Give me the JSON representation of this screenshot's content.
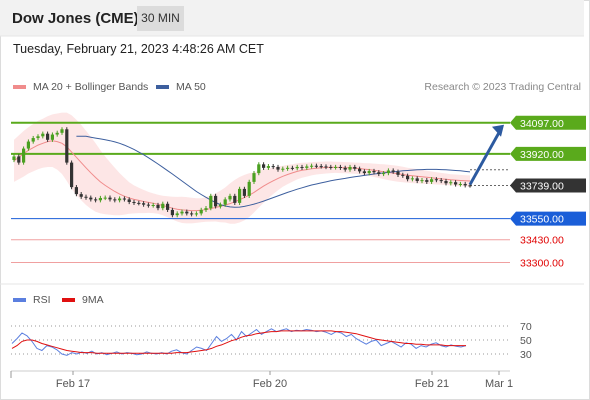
{
  "header": {
    "title": "Dow Jones (CME)",
    "timeframe": "30 MIN",
    "datetime": "Tuesday, February 21, 2023 4:48:26 AM CET",
    "research": "Research © 2023 Trading Central"
  },
  "legend": {
    "ma20": "MA 20 + Bollinger Bands",
    "ma50": "MA 50",
    "rsi": "RSI",
    "rsi_ma": "9MA"
  },
  "colors": {
    "ma20": "#f08c8c",
    "ma50": "#3d5f9e",
    "bull": "#4aa020",
    "bear": "#333333",
    "resistance": "#5aaa1c",
    "support": "#1a5ed8",
    "support_weak": "#f0a0a0",
    "support_label": "#e00000",
    "rsi": "#5b7fdf",
    "rsi_ma": "#e01010"
  },
  "chart_data": [
    {
      "type": "candlestick",
      "x_ticks": [
        "Feb 17",
        "Feb 20",
        "Feb 21",
        "Mar 1"
      ],
      "y_range": [
        33200,
        34250
      ],
      "levels": [
        {
          "label": "34097.00",
          "value": 34097,
          "kind": "resistance"
        },
        {
          "label": "33920.00",
          "value": 33920,
          "kind": "resistance"
        },
        {
          "label": "33739.00",
          "value": 33739,
          "kind": "current"
        },
        {
          "label": "33550.00",
          "value": 33550,
          "kind": "support"
        },
        {
          "label": "33430.00",
          "value": 33430,
          "kind": "support_weak"
        },
        {
          "label": "33300.00",
          "value": 33300,
          "kind": "support_weak"
        }
      ],
      "close": [
        33905,
        33870,
        33950,
        33990,
        34010,
        34020,
        34035,
        34000,
        34030,
        34040,
        34060,
        33870,
        33730,
        33690,
        33675,
        33670,
        33660,
        33655,
        33668,
        33670,
        33660,
        33655,
        33665,
        33660,
        33645,
        33640,
        33638,
        33630,
        33625,
        33628,
        33610,
        33635,
        33600,
        33570,
        33580,
        33590,
        33580,
        33575,
        33580,
        33600,
        33610,
        33680,
        33620,
        33630,
        33660,
        33680,
        33640,
        33720,
        33680,
        33760,
        33810,
        33860,
        33840,
        33850,
        33845,
        33830,
        33835,
        33840,
        33838,
        33845,
        33840,
        33848,
        33852,
        33850,
        33848,
        33845,
        33842,
        33845,
        33840,
        33830,
        33845,
        33835,
        33820,
        33810,
        33822,
        33815,
        33805,
        33810,
        33825,
        33818,
        33800,
        33795,
        33775,
        33780,
        33765,
        33770,
        33760,
        33775,
        33770,
        33765,
        33752,
        33758,
        33745,
        33748,
        33740,
        33739
      ],
      "ma20": [
        33880,
        33900,
        33920,
        33940,
        33955,
        33970,
        33980,
        33990,
        33995,
        33990,
        33980,
        33960,
        33930,
        33900,
        33870,
        33840,
        33812,
        33785,
        33760,
        33740,
        33722,
        33705,
        33690,
        33678,
        33668,
        33660,
        33654,
        33648,
        33643,
        33638,
        33632,
        33625,
        33618,
        33610,
        33604,
        33600,
        33598,
        33596,
        33596,
        33598,
        33602,
        33608,
        33614,
        33620,
        33628,
        33636,
        33646,
        33658,
        33670,
        33684,
        33700,
        33718,
        33736,
        33752,
        33766,
        33780,
        33792,
        33802,
        33811,
        33820,
        33826,
        33830,
        33835,
        33838,
        33840,
        33842,
        33843,
        33843,
        33842,
        33841,
        33840,
        33838,
        33836,
        33833,
        33830,
        33826,
        33822,
        33818,
        33814,
        33810,
        33806,
        33802,
        33798,
        33795,
        33792,
        33789,
        33786,
        33783,
        33780,
        33777,
        33775,
        33772,
        33770,
        33768,
        33766,
        33765
      ],
      "bollinger_width": [
        120,
        125,
        130,
        132,
        135,
        138,
        140,
        145,
        150,
        160,
        175,
        195,
        210,
        215,
        215,
        212,
        205,
        195,
        180,
        165,
        150,
        135,
        120,
        105,
        90,
        80,
        72,
        66,
        60,
        56,
        54,
        56,
        60,
        65,
        70,
        75,
        75,
        73,
        70,
        68,
        70,
        75,
        80,
        90,
        100,
        115,
        125,
        130,
        130,
        125,
        115,
        105,
        95,
        85,
        75,
        68,
        60,
        55,
        50,
        46,
        43,
        40,
        38,
        36,
        35,
        34,
        33,
        32,
        32,
        32,
        32,
        32,
        33,
        34,
        36,
        38,
        40,
        42,
        44,
        45,
        45,
        44,
        43,
        42,
        41,
        40,
        38,
        36,
        35,
        34,
        33,
        32,
        32,
        32,
        32,
        32
      ],
      "ma50": [
        34020,
        34020,
        34020,
        34015,
        34010,
        34005,
        34000,
        33995,
        33988,
        33980,
        33970,
        33958,
        33945,
        33930,
        33915,
        33898,
        33880,
        33862,
        33843,
        33824,
        33805,
        33785,
        33765,
        33745,
        33725,
        33705,
        33688,
        33672,
        33656,
        33642,
        33630,
        33622,
        33617,
        33615,
        33616,
        33620,
        33626,
        33633,
        33641,
        33650,
        33660,
        33670,
        33680,
        33690,
        33700,
        33709,
        33718,
        33726,
        33734,
        33742,
        33748,
        33754,
        33760,
        33766,
        33771,
        33776,
        33780,
        33785,
        33789,
        33793,
        33797,
        33801,
        33805,
        33808,
        33811,
        33814,
        33817,
        33820,
        33823,
        33825,
        33827,
        33829,
        33830,
        33831,
        33831,
        33831,
        33830,
        33829,
        33827,
        33825,
        33823,
        33820,
        33817
      ],
      "forecast": {
        "from": 33739,
        "to": 34097
      }
    },
    {
      "type": "line",
      "y_ticks": [
        70,
        50,
        30
      ],
      "y_range": [
        10,
        90
      ],
      "series": [
        {
          "name": "RSI",
          "values": [
            45,
            52,
            60,
            56,
            48,
            38,
            35,
            42,
            40,
            36,
            30,
            28,
            32,
            30,
            33,
            31,
            34,
            30,
            32,
            29,
            31,
            33,
            30,
            32,
            31,
            29,
            30,
            33,
            31,
            30,
            32,
            30,
            34,
            36,
            32,
            30,
            35,
            40,
            38,
            35,
            45,
            55,
            48,
            52,
            58,
            50,
            62,
            55,
            60,
            65,
            58,
            62,
            66,
            62,
            64,
            66,
            62,
            64,
            63,
            65,
            64,
            62,
            63,
            61,
            58,
            62,
            60,
            55,
            58,
            52,
            48,
            44,
            48,
            50,
            42,
            45,
            48,
            44,
            40,
            46,
            44,
            38,
            42,
            40,
            44,
            46,
            42,
            40,
            43,
            41,
            40,
            42
          ]
        },
        {
          "name": "9MA",
          "values": [
            38,
            42,
            48,
            50,
            50,
            48,
            45,
            43,
            41,
            39,
            37,
            35,
            34,
            33,
            32,
            32,
            32,
            31,
            31,
            31,
            31,
            31,
            31,
            31,
            31,
            31,
            31,
            31,
            31,
            31,
            31,
            31,
            31,
            32,
            32,
            32,
            33,
            34,
            35,
            36,
            38,
            41,
            43,
            46,
            49,
            51,
            54,
            56,
            57,
            59,
            60,
            61,
            62,
            62,
            63,
            63,
            63,
            63,
            63,
            63,
            63,
            63,
            63,
            63,
            63,
            62,
            62,
            61,
            60,
            59,
            57,
            55,
            53,
            51,
            50,
            49,
            48,
            47,
            46,
            45,
            45,
            44,
            44,
            43,
            43,
            43,
            43,
            42,
            42,
            42,
            42,
            42
          ]
        }
      ]
    }
  ]
}
